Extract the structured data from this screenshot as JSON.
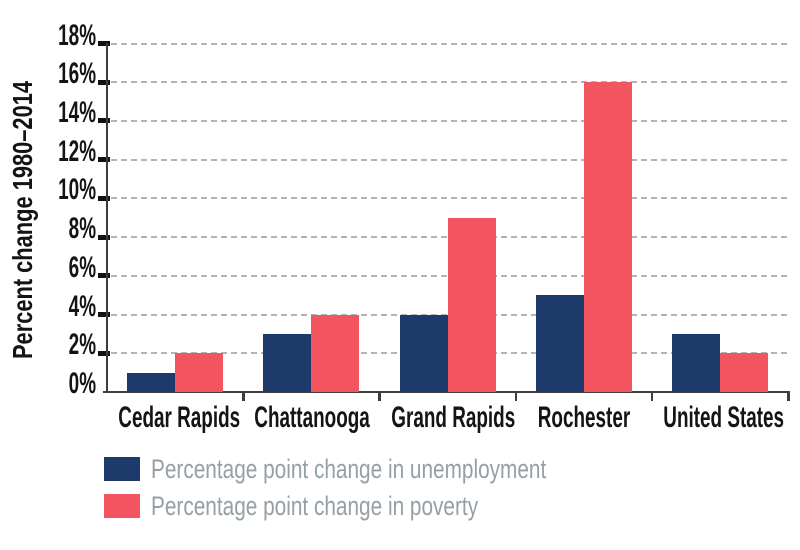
{
  "chart_data": {
    "type": "bar",
    "title": "",
    "ylabel": "Percent change 1980–2014",
    "xlabel": "",
    "categories": [
      "Cedar Rapids",
      "Chattanooga",
      "Grand Rapids",
      "Rochester",
      "United States"
    ],
    "series": [
      {
        "name": "Percentage point change in unemployment",
        "color": "#1e3a6b",
        "values": [
          1,
          3,
          4,
          5,
          3
        ]
      },
      {
        "name": "Percentage point change in poverty",
        "color": "#f25560",
        "values": [
          2,
          4,
          9,
          16,
          2
        ]
      }
    ],
    "ylim": [
      0,
      18
    ],
    "ytick_step": 2,
    "ytick_labels": [
      "0%",
      "2%",
      "4%",
      "6%",
      "8%",
      "10%",
      "12%",
      "14%",
      "16%",
      "18%"
    ],
    "grid": "horizontal-dashed",
    "legend_position": "bottom-left"
  },
  "colors": {
    "background": "#ffffff",
    "bar_unemployment": "#1e3a6b",
    "bar_poverty": "#f25560",
    "gridline": "#b3b3b3",
    "axis": "#3d3d3d",
    "tick": "#111111",
    "axis_text": "#141414",
    "legend_text": "#95a0a6"
  }
}
